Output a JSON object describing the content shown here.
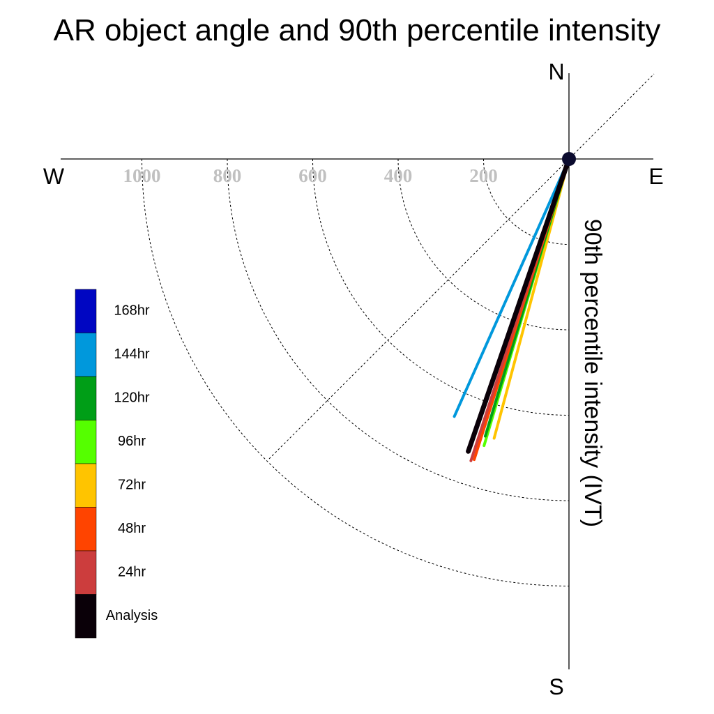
{
  "chart_data": {
    "type": "polar-line",
    "title": "AR object angle and 90th percentile intensity",
    "radial_label": "90th percentile intensity (IVT)",
    "compass": {
      "north": "N",
      "south": "S",
      "east": "E",
      "west": "W"
    },
    "radial_ticks": [
      "1000",
      "800",
      "600",
      "400",
      "200"
    ],
    "radial_tick_values": [
      1000,
      800,
      600,
      400,
      200
    ],
    "rings": [
      200,
      400,
      600,
      800,
      1000
    ],
    "rmax": 1200,
    "quadrant": "south-west",
    "grid": true,
    "legend_position": "left",
    "series": [
      {
        "name": "Analysis",
        "color": "#0a0008",
        "angle_deg": 199.0,
        "intensity": 724
      },
      {
        "name": "24hr",
        "color": "#cc3d3d",
        "angle_deg": 198.0,
        "intensity": 743
      },
      {
        "name": "48hr",
        "color": "#ff4400",
        "angle_deg": 197.5,
        "intensity": 738
      },
      {
        "name": "72hr",
        "color": "#ffc400",
        "angle_deg": 195.0,
        "intensity": 677
      },
      {
        "name": "96hr",
        "color": "#55ff00",
        "angle_deg": 196.5,
        "intensity": 700
      },
      {
        "name": "120hr",
        "color": "#009e17",
        "angle_deg": 196.8,
        "intensity": 678
      },
      {
        "name": "144hr",
        "color": "#0098dc",
        "angle_deg": 204.0,
        "intensity": 660
      },
      {
        "name": "168hr",
        "color": "#0006c2",
        "angle_deg": null,
        "intensity": null
      }
    ],
    "legend_order": [
      "168hr",
      "144hr",
      "120hr",
      "96hr",
      "72hr",
      "48hr",
      "24hr",
      "Analysis"
    ]
  }
}
